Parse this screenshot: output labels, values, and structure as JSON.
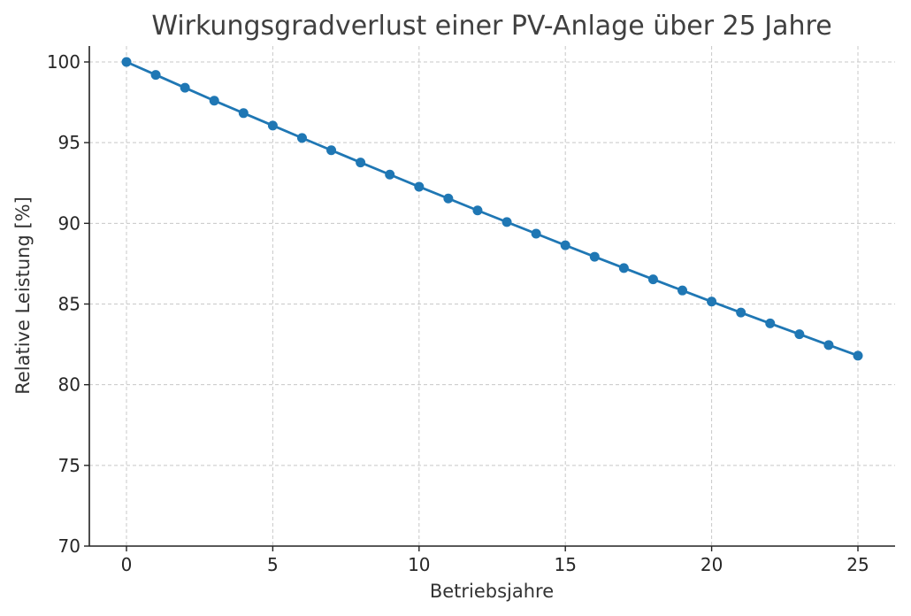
{
  "chart_data": {
    "type": "line",
    "title": "Wirkungsgradverlust einer PV-Anlage über 25 Jahre",
    "xlabel": "Betriebsjahre",
    "ylabel": "Relative Leistung [%]",
    "xlim": [
      0,
      25
    ],
    "ylim": [
      70,
      100
    ],
    "xticks": [
      0,
      5,
      10,
      15,
      20,
      25
    ],
    "yticks": [
      70,
      75,
      80,
      85,
      90,
      95,
      100
    ],
    "grid": true,
    "series": [
      {
        "color": "#1f77b4",
        "marker": "circle",
        "x": [
          0,
          1,
          2,
          3,
          4,
          5,
          6,
          7,
          8,
          9,
          10,
          11,
          12,
          13,
          14,
          15,
          16,
          17,
          18,
          19,
          20,
          21,
          22,
          23,
          24,
          25
        ],
        "y": [
          100.0,
          99.2,
          98.4,
          97.6,
          96.83,
          96.06,
          95.29,
          94.53,
          93.77,
          93.02,
          92.27,
          91.54,
          90.8,
          90.08,
          89.36,
          88.64,
          87.93,
          87.23,
          86.53,
          85.84,
          85.15,
          84.47,
          83.8,
          83.13,
          82.46,
          81.8
        ]
      }
    ]
  }
}
